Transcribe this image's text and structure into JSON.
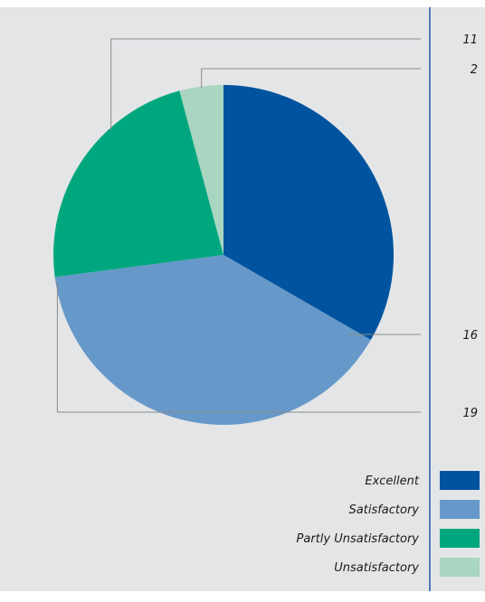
{
  "colors": {
    "background": "#e4e5e7",
    "divider": "#1f5aa6",
    "leader": "#8a8a8a"
  },
  "chart_data": {
    "type": "pie",
    "title": "",
    "slices": [
      {
        "label": "Excellent",
        "value": 16,
        "color": "#00539f"
      },
      {
        "label": "Satisfactory",
        "value": 19,
        "color": "#6699c9"
      },
      {
        "label": "Partly Unsatisfactory",
        "value": 11,
        "color": "#00a77e"
      },
      {
        "label": "Unsatisfactory",
        "value": 2,
        "color": "#a8d6c0"
      }
    ],
    "data_labels": [
      "16",
      "19",
      "11",
      "2"
    ],
    "legend_position": "bottom-right",
    "start": "top",
    "direction": "clockwise"
  }
}
